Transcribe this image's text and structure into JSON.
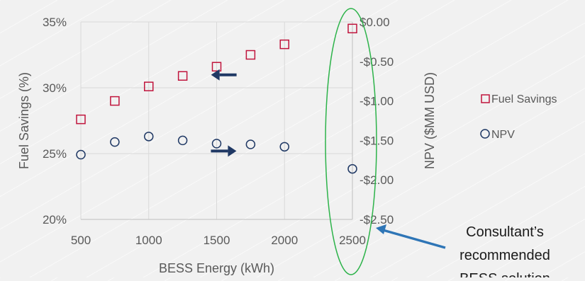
{
  "chart_data": {
    "type": "scatter",
    "x": [
      500,
      750,
      1000,
      1250,
      1500,
      1750,
      2000,
      2500
    ],
    "xlabel": "BESS Energy (kWh)",
    "ylabel": "Fuel Savings (%)",
    "y2label": "NPV ($MM USD)",
    "xlim": [
      500,
      2500
    ],
    "ylim": [
      20,
      35
    ],
    "y2lim": [
      -2.5,
      0
    ],
    "x_ticks": [
      "500",
      "1000",
      "1500",
      "2000",
      "2500"
    ],
    "x_tick_values": [
      500,
      1000,
      1500,
      2000,
      2500
    ],
    "y_ticks": [
      "20%",
      "25%",
      "30%",
      "35%"
    ],
    "y_tick_values": [
      20,
      25,
      30,
      35
    ],
    "y2_ticks": [
      "$0.00",
      "-$0.50",
      "-$1.00",
      "-$1.50",
      "-$2.00",
      "-$2.50"
    ],
    "y2_tick_values": [
      0,
      -0.5,
      -1.0,
      -1.5,
      -2.0,
      -2.5
    ],
    "grid": true,
    "legend_position": "right",
    "series": [
      {
        "name": "Fuel Savings",
        "axis": "left",
        "marker": "square",
        "color": "#c0143c",
        "values": [
          27.6,
          29.0,
          30.1,
          30.9,
          31.6,
          32.5,
          33.3,
          34.5
        ]
      },
      {
        "name": "NPV",
        "axis": "right",
        "marker": "circle",
        "color": "#1f3864",
        "values": [
          -1.68,
          -1.52,
          -1.45,
          -1.5,
          -1.54,
          -1.55,
          -1.58,
          -1.86
        ]
      }
    ],
    "annotation": {
      "text_lines": [
        "Consultant’s",
        "recommended",
        "BESS solution"
      ],
      "target_x": 2500,
      "highlight_color": "#2db34a",
      "arrow_color": "#2e75b6"
    },
    "direction_arrows": [
      {
        "series": "Fuel Savings",
        "direction": "left",
        "color": "#1f3864"
      },
      {
        "series": "NPV",
        "direction": "right",
        "color": "#1f3864"
      }
    ]
  }
}
